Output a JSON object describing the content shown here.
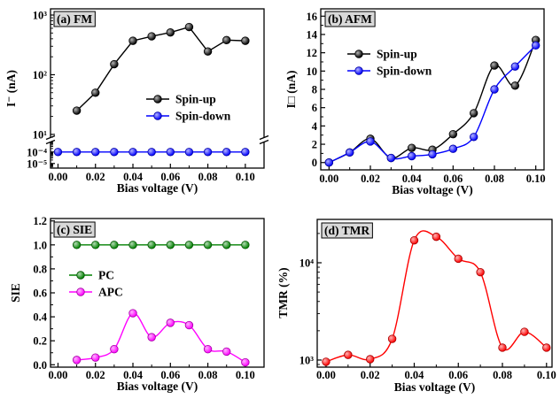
{
  "chart_data": [
    {
      "panel_label": "(a) FM",
      "type": "line",
      "curve": "straight",
      "xlabel": "Bias voltage (V)",
      "ylabel": "I⁻ (nA)",
      "xlim": [
        -0.004,
        0.11
      ],
      "x_ticks": [
        0,
        0.02,
        0.04,
        0.06,
        0.08,
        0.1
      ],
      "x_tick_labels": [
        "0.00",
        "0.02",
        "0.04",
        "0.06",
        "0.08",
        "0.10"
      ],
      "yscale": "log",
      "y_axis_break": true,
      "y_segments": [
        {
          "ylim": [
            8.7,
            1270
          ],
          "ticks": [
            10,
            100,
            1000
          ],
          "tick_labels": [
            "10¹",
            "10²",
            "10³"
          ]
        },
        {
          "ylim": [
            4e-06,
            0.0008
          ],
          "ticks": [
            1e-05,
            0.0001
          ],
          "tick_labels": [
            "10⁻⁵",
            "10⁻⁴"
          ]
        }
      ],
      "legend": "center-right",
      "series": [
        {
          "name": "Spin-up",
          "color": "#000000",
          "x": [
            0.01,
            0.02,
            0.03,
            0.04,
            0.05,
            0.06,
            0.07,
            0.08,
            0.09,
            0.1
          ],
          "y": [
            25,
            50,
            150,
            370,
            440,
            510,
            630,
            245,
            380,
            370
          ]
        },
        {
          "name": "Spin-down",
          "color": "#0000ff",
          "x": [
            0,
            0.01,
            0.02,
            0.03,
            0.04,
            0.05,
            0.06,
            0.07,
            0.08,
            0.09,
            0.1
          ],
          "y": [
            0.0001,
            0.0001,
            0.0001,
            0.0001,
            0.0001,
            0.0001,
            0.0001,
            0.0001,
            0.0001,
            0.0001,
            0.0001
          ]
        }
      ]
    },
    {
      "panel_label": "(b) AFM",
      "type": "line",
      "curve": "smooth",
      "xlabel": "Bias voltage (V)",
      "ylabel": "I□ (nA)",
      "xlim": [
        -0.004,
        0.104
      ],
      "x_ticks": [
        0,
        0.02,
        0.04,
        0.06,
        0.08,
        0.1
      ],
      "x_tick_labels": [
        "0.00",
        "0.02",
        "0.04",
        "0.06",
        "0.08",
        "0.10"
      ],
      "yscale": "linear",
      "ylim": [
        -0.8,
        16.8
      ],
      "y_ticks": [
        0,
        2,
        4,
        6,
        8,
        10,
        12,
        14,
        16
      ],
      "y_tick_labels": [
        "0",
        "2",
        "4",
        "6",
        "8",
        "10",
        "12",
        "14",
        "16"
      ],
      "legend": "upper-left",
      "series": [
        {
          "name": "Spin-up",
          "color": "#000000",
          "x": [
            0,
            0.01,
            0.02,
            0.03,
            0.04,
            0.05,
            0.06,
            0.07,
            0.08,
            0.09,
            0.1
          ],
          "y": [
            0.0,
            1.1,
            2.6,
            0.5,
            1.6,
            1.4,
            3.1,
            5.4,
            10.6,
            8.4,
            13.4
          ]
        },
        {
          "name": "Spin-down",
          "color": "#0000ff",
          "x": [
            0,
            0.01,
            0.02,
            0.03,
            0.04,
            0.05,
            0.06,
            0.07,
            0.08,
            0.09,
            0.1
          ],
          "y": [
            0.0,
            1.1,
            2.3,
            0.5,
            0.7,
            0.9,
            1.5,
            2.8,
            8.0,
            10.5,
            12.8
          ]
        }
      ]
    },
    {
      "panel_label": "(c) SIE",
      "type": "line",
      "curve": "smooth",
      "xlabel": "Bias voltage (V)",
      "ylabel": "SIE",
      "xlim": [
        -0.004,
        0.11
      ],
      "x_ticks": [
        0,
        0.02,
        0.04,
        0.06,
        0.08,
        0.1
      ],
      "x_tick_labels": [
        "0.00",
        "0.02",
        "0.04",
        "0.06",
        "0.08",
        "0.10"
      ],
      "yscale": "linear",
      "ylim": [
        -0.02,
        1.22
      ],
      "y_ticks": [
        0,
        0.2,
        0.4,
        0.6,
        0.8,
        1.0,
        1.2
      ],
      "y_tick_labels": [
        "0.0",
        "0.2",
        "0.4",
        "0.6",
        "0.8",
        "1.0",
        "1.2"
      ],
      "legend": "center-left",
      "series": [
        {
          "name": "PC",
          "color": "#008000",
          "x": [
            0.01,
            0.02,
            0.03,
            0.04,
            0.05,
            0.06,
            0.07,
            0.08,
            0.09,
            0.1
          ],
          "y": [
            1.0,
            1.0,
            1.0,
            1.0,
            1.0,
            1.0,
            1.0,
            1.0,
            1.0,
            1.0
          ]
        },
        {
          "name": "APC",
          "color": "#ff00ff",
          "x": [
            0.01,
            0.02,
            0.03,
            0.04,
            0.05,
            0.06,
            0.07,
            0.08,
            0.09,
            0.1
          ],
          "y": [
            0.04,
            0.06,
            0.13,
            0.43,
            0.23,
            0.35,
            0.33,
            0.13,
            0.11,
            0.02
          ]
        }
      ]
    },
    {
      "panel_label": "(d) TMR",
      "type": "line",
      "curve": "smooth",
      "xlabel": "Bias voltage (V)",
      "ylabel": "TMR (%)",
      "xlim": [
        -0.004,
        0.1025
      ],
      "x_ticks": [
        0,
        0.02,
        0.04,
        0.06,
        0.08,
        0.1
      ],
      "x_tick_labels": [
        "0.00",
        "0.02",
        "0.04",
        "0.06",
        "0.08",
        "0.10"
      ],
      "yscale": "log",
      "ylim": [
        845,
        27900
      ],
      "y_ticks": [
        1000,
        10000
      ],
      "y_tick_labels": [
        "10³",
        "10⁴"
      ],
      "series": [
        {
          "color": "#ff0000",
          "x": [
            0,
            0.01,
            0.02,
            0.03,
            0.04,
            0.05,
            0.06,
            0.07,
            0.08,
            0.09,
            0.1
          ],
          "y": [
            960,
            1130,
            1020,
            1650,
            17000,
            18500,
            11000,
            8000,
            1340,
            1950,
            1340
          ]
        }
      ]
    }
  ]
}
